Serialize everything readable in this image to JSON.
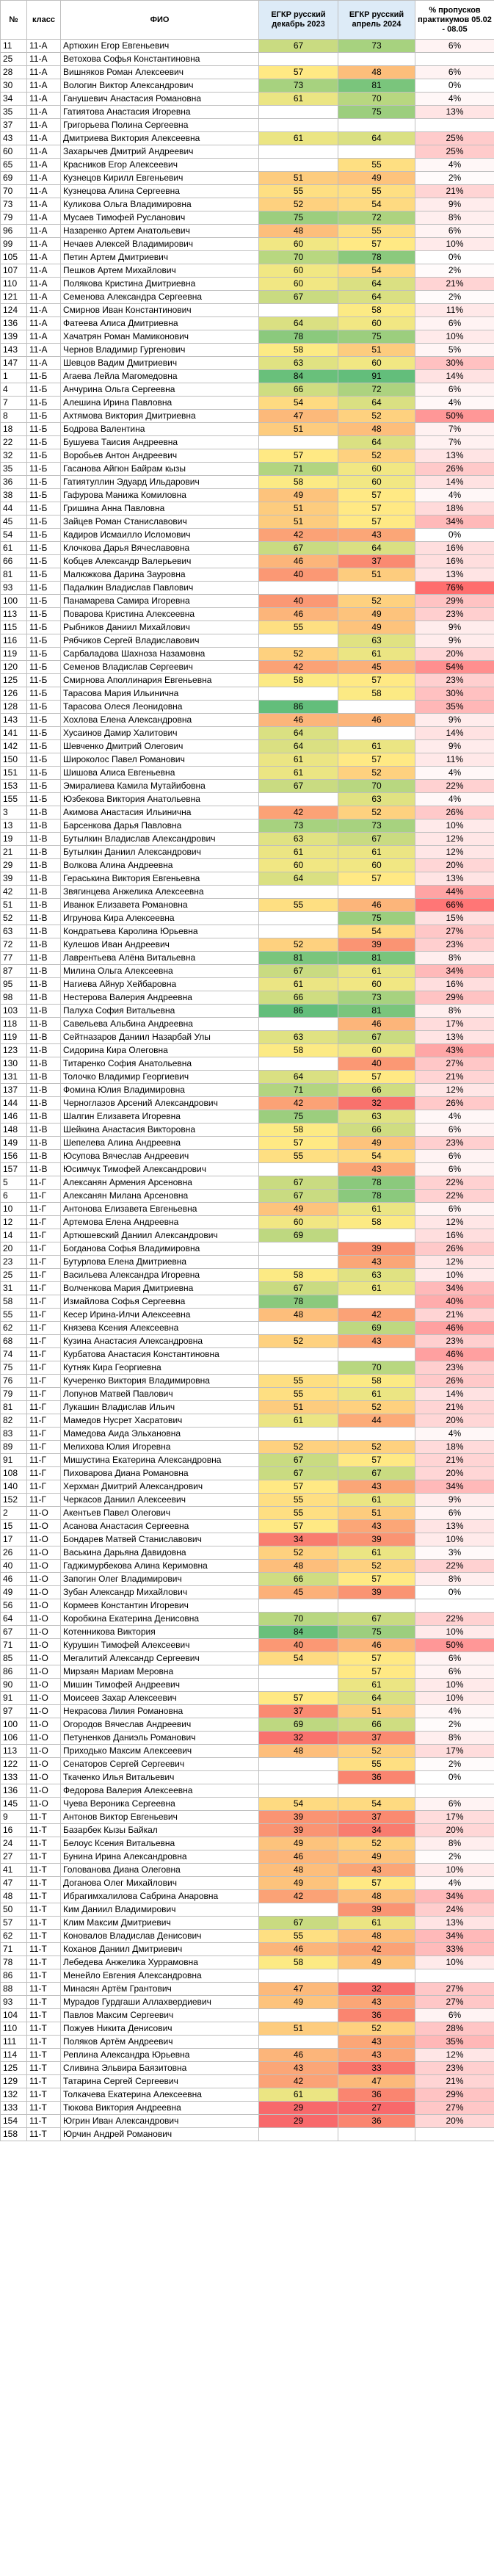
{
  "headers": [
    "№",
    "класс",
    "ФИО",
    "ЕГКР русский декабрь 2023",
    "ЕГКР русский апрель 2024",
    "% пропусков практикумов 05.02 - 08.05"
  ],
  "rows": [
    [
      "11",
      "11-А",
      "Артюхин Егор Евгеньевич",
      "67",
      "73",
      "6%"
    ],
    [
      "25",
      "11-А",
      "Ветохова Софья Константиновна",
      "",
      "",
      ""
    ],
    [
      "28",
      "11-А",
      "Вишняков Роман Алексеевич",
      "57",
      "48",
      "6%"
    ],
    [
      "30",
      "11-А",
      "Вологин Виктор Александрович",
      "73",
      "81",
      "0%"
    ],
    [
      "34",
      "11-А",
      "Ганушевич Анастасия Романовна",
      "61",
      "70",
      "4%"
    ],
    [
      "35",
      "11-А",
      "Гатиятова Анастасия Игоревна",
      "",
      "75",
      "13%"
    ],
    [
      "37",
      "11-А",
      "Григорьева Полина Сергеевна",
      "",
      "",
      ""
    ],
    [
      "43",
      "11-А",
      "Дмитриева Виктория Алексеевна",
      "61",
      "64",
      "25%"
    ],
    [
      "60",
      "11-А",
      "Захарычев Дмитрий Андреевич",
      "",
      "",
      "25%"
    ],
    [
      "65",
      "11-А",
      "Красников Егор Алексеевич",
      "",
      "55",
      "4%"
    ],
    [
      "69",
      "11-А",
      "Кузнецов Кирилл Евгеньевич",
      "51",
      "49",
      "2%"
    ],
    [
      "70",
      "11-А",
      "Кузнецова Алина Сергеевна",
      "55",
      "55",
      "21%"
    ],
    [
      "73",
      "11-А",
      "Куликова Ольга Владимировна",
      "52",
      "54",
      "9%"
    ],
    [
      "79",
      "11-А",
      "Мусаев Тимофей Русланович",
      "75",
      "72",
      "8%"
    ],
    [
      "96",
      "11-А",
      "Назаренко Артем Анатольевич",
      "48",
      "55",
      "6%"
    ],
    [
      "99",
      "11-А",
      "Нечаев Алексей Владимирович",
      "60",
      "57",
      "10%"
    ],
    [
      "105",
      "11-А",
      "Петин Артем Дмитриевич",
      "70",
      "78",
      "0%"
    ],
    [
      "107",
      "11-А",
      "Пешков Артем Михайлович",
      "60",
      "54",
      "2%"
    ],
    [
      "110",
      "11-А",
      "Полякова Кристина Дмитриевна",
      "60",
      "64",
      "21%"
    ],
    [
      "121",
      "11-А",
      "Семенова Александра Сергеевна",
      "67",
      "64",
      "2%"
    ],
    [
      "124",
      "11-А",
      "Смирнов Иван Константинович",
      "",
      "58",
      "11%"
    ],
    [
      "136",
      "11-А",
      "Фатеева Алиса Дмитриевна",
      "64",
      "60",
      "6%"
    ],
    [
      "139",
      "11-А",
      "Хачатрян Роман Мамиконович",
      "78",
      "75",
      "10%"
    ],
    [
      "143",
      "11-А",
      "Чернов Владимир Гургенович",
      "58",
      "51",
      "5%"
    ],
    [
      "147",
      "11-А",
      "Шевцов Вадим Дмитриевич",
      "63",
      "60",
      "30%"
    ],
    [
      "1",
      "11-Б",
      "Агаева Лейла Магомедовна",
      "84",
      "91",
      "14%"
    ],
    [
      "4",
      "11-Б",
      "Анчурина Ольга Сергеевна",
      "66",
      "72",
      "6%"
    ],
    [
      "7",
      "11-Б",
      "Алешина Ирина Павловна",
      "54",
      "64",
      "4%"
    ],
    [
      "8",
      "11-Б",
      "Ахтямова Виктория Дмитриевна",
      "47",
      "52",
      "50%"
    ],
    [
      "18",
      "11-Б",
      "Бодрова Валентина",
      "51",
      "48",
      "7%"
    ],
    [
      "22",
      "11-Б",
      "Бушуева Таисия Андреевна",
      "",
      "64",
      "7%"
    ],
    [
      "32",
      "11-Б",
      "Воробьев Антон Андреевич",
      "57",
      "52",
      "13%"
    ],
    [
      "35",
      "11-Б",
      "Гасанова Айгюн Байрам кызы",
      "71",
      "60",
      "26%"
    ],
    [
      "36",
      "11-Б",
      "Гатиятуллин Эдуард Ильдарович",
      "58",
      "60",
      "14%"
    ],
    [
      "38",
      "11-Б",
      "Гафурова Манижа Комиловна",
      "49",
      "57",
      "4%"
    ],
    [
      "44",
      "11-Б",
      "Гришина Анна Павловна",
      "51",
      "57",
      "18%"
    ],
    [
      "45",
      "11-Б",
      "Зайцев Роман Станиславович",
      "51",
      "57",
      "34%"
    ],
    [
      "54",
      "11-Б",
      "Кадиров Исмаилло Исломович",
      "42",
      "43",
      "0%"
    ],
    [
      "61",
      "11-Б",
      "Клочкова Дарья Вячеславовна",
      "67",
      "64",
      "16%"
    ],
    [
      "66",
      "11-Б",
      "Кобцев Александр Валерьевич",
      "46",
      "37",
      "16%"
    ],
    [
      "81",
      "11-Б",
      "Малюжкова Дарина Зауровна",
      "40",
      "51",
      "13%"
    ],
    [
      "93",
      "11-Б",
      "Падалкин Владислав Павлович",
      "",
      "",
      "76%"
    ],
    [
      "100",
      "11-Б",
      "Панамарева Самира Игоревна",
      "40",
      "52",
      "29%"
    ],
    [
      "113",
      "11-Б",
      "Поварова Кристина Алексеевна",
      "46",
      "49",
      "23%"
    ],
    [
      "115",
      "11-Б",
      "Рыбников Даниил Михайлович",
      "55",
      "49",
      "9%"
    ],
    [
      "116",
      "11-Б",
      "Рябчиков Сергей Владиславович",
      "",
      "63",
      "9%"
    ],
    [
      "119",
      "11-Б",
      "Сарбаладова Шахноза Назамовна",
      "52",
      "61",
      "20%"
    ],
    [
      "120",
      "11-Б",
      "Семенов Владислав Сергеевич",
      "42",
      "45",
      "54%"
    ],
    [
      "125",
      "11-Б",
      "Смирнова Аполлинария Евгеньевна",
      "58",
      "57",
      "23%"
    ],
    [
      "126",
      "11-Б",
      "Тарасова Мария Ильинична",
      "",
      "58",
      "30%"
    ],
    [
      "128",
      "11-Б",
      "Тарасова Олеся Леонидовна",
      "86",
      "",
      "35%"
    ],
    [
      "143",
      "11-Б",
      "Хохлова Елена Александровна",
      "46",
      "46",
      "9%"
    ],
    [
      "141",
      "11-Б",
      "Хусаинов Дамир Халитович",
      "64",
      "",
      "14%"
    ],
    [
      "142",
      "11-Б",
      "Шевченко Дмитрий Олегович",
      "64",
      "61",
      "9%"
    ],
    [
      "150",
      "11-Б",
      "Широколос Павел Романович",
      "61",
      "57",
      "11%"
    ],
    [
      "151",
      "11-Б",
      "Шишова Алиса Евгеньевна",
      "61",
      "52",
      "4%"
    ],
    [
      "153",
      "11-Б",
      "Эмиралиева Камила Мутайибовна",
      "67",
      "70",
      "22%"
    ],
    [
      "155",
      "11-Б",
      "Юзбекова Виктория Анатольевна",
      "",
      "63",
      "4%"
    ],
    [
      "3",
      "11-В",
      "Акимова Анастасия Ильинична",
      "42",
      "52",
      "26%"
    ],
    [
      "13",
      "11-В",
      "Барсенкова Дарья Павловна",
      "73",
      "73",
      "10%"
    ],
    [
      "19",
      "11-В",
      "Бутылкин Владислав Александрович",
      "63",
      "67",
      "12%"
    ],
    [
      "21",
      "11-В",
      "Бутылкин Даниил Александрович",
      "61",
      "61",
      "12%"
    ],
    [
      "29",
      "11-В",
      "Волкова Алина Андреевна",
      "60",
      "60",
      "20%"
    ],
    [
      "39",
      "11-В",
      "Гераськина Виктория Евгеньевна",
      "64",
      "57",
      "13%"
    ],
    [
      "42",
      "11-В",
      "Звягинцева Анжелика Алексеевна",
      "",
      "",
      "44%"
    ],
    [
      "51",
      "11-В",
      "Иванюк Елизавета Романовна",
      "55",
      "46",
      "66%"
    ],
    [
      "52",
      "11-В",
      "Игрунова Кира Алексеевна",
      "",
      "75",
      "15%"
    ],
    [
      "63",
      "11-В",
      "Кондратьева Каролина Юрьевна",
      "",
      "54",
      "27%"
    ],
    [
      "72",
      "11-В",
      "Кулешов Иван Андреевич",
      "52",
      "39",
      "23%"
    ],
    [
      "77",
      "11-В",
      "Лаврентьева Алёна Витальевна",
      "81",
      "81",
      "8%"
    ],
    [
      "87",
      "11-В",
      "Милина Ольга Алексеевна",
      "67",
      "61",
      "34%"
    ],
    [
      "95",
      "11-В",
      "Нагиева Айнур Хейбаровна",
      "61",
      "60",
      "16%"
    ],
    [
      "98",
      "11-В",
      "Нестерова Валерия Андреевна",
      "66",
      "73",
      "29%"
    ],
    [
      "103",
      "11-В",
      "Палуха София Витальевна",
      "86",
      "81",
      "8%"
    ],
    [
      "118",
      "11-В",
      "Савельева Альбина Андреевна",
      "",
      "46",
      "17%"
    ],
    [
      "119",
      "11-В",
      "Сейтназаров Даниил Назарбай Улы",
      "63",
      "67",
      "13%"
    ],
    [
      "123",
      "11-В",
      "Сидорина Кира Олеговна",
      "58",
      "60",
      "43%"
    ],
    [
      "130",
      "11-В",
      "Титаренко София Анатольевна",
      "",
      "40",
      "27%"
    ],
    [
      "131",
      "11-В",
      "Толочко Владимир Георгиевич",
      "64",
      "57",
      "21%"
    ],
    [
      "137",
      "11-В",
      "Фомина Юлия Владимировна",
      "71",
      "66",
      "12%"
    ],
    [
      "144",
      "11-В",
      "Черноглазов Арсений Александрович",
      "42",
      "32",
      "26%"
    ],
    [
      "146",
      "11-В",
      "Шалгин Елизавета Игоревна",
      "75",
      "63",
      "4%"
    ],
    [
      "148",
      "11-В",
      "Шейкина Анастасия Викторовна",
      "58",
      "66",
      "6%"
    ],
    [
      "149",
      "11-В",
      "Шепелева Алина Андреевна",
      "57",
      "49",
      "23%"
    ],
    [
      "156",
      "11-В",
      "Юсупова Вячеслав Андреевич",
      "55",
      "54",
      "6%"
    ],
    [
      "157",
      "11-В",
      "Юсимчук Тимофей Александрович",
      "",
      "43",
      "6%"
    ],
    [
      "5",
      "11-Г",
      "Алексанян Армения Арсеновна",
      "67",
      "78",
      "22%"
    ],
    [
      "6",
      "11-Г",
      "Алексанян Милана Арсеновна",
      "67",
      "78",
      "22%"
    ],
    [
      "10",
      "11-Г",
      "Антонова Елизавета Евгеньевна",
      "49",
      "61",
      "6%"
    ],
    [
      "12",
      "11-Г",
      "Артемова Елена Андреевна",
      "60",
      "58",
      "12%"
    ],
    [
      "14",
      "11-Г",
      "Артюшевский Даниил Александрович",
      "69",
      "",
      "16%"
    ],
    [
      "20",
      "11-Г",
      "Богданова Софья Владимировна",
      "",
      "39",
      "26%"
    ],
    [
      "23",
      "11-Г",
      "Бутурлова Елена Дмитриевна",
      "",
      "43",
      "12%"
    ],
    [
      "25",
      "11-Г",
      "Васильева Александра Игоревна",
      "58",
      "63",
      "10%"
    ],
    [
      "31",
      "11-Г",
      "Волченкова Мария Дмитриевна",
      "67",
      "61",
      "34%"
    ],
    [
      "58",
      "11-Г",
      "Измайлова Софья Сергеевна",
      "78",
      "",
      "40%"
    ],
    [
      "55",
      "11-Г",
      "Кесер Ирина-Илчи Алексеевна",
      "48",
      "42",
      "21%"
    ],
    [
      "62",
      "11-Г",
      "Князева Ксения Алексеевна",
      "",
      "69",
      "46%"
    ],
    [
      "68",
      "11-Г",
      "Кузина Анастасия Александровна",
      "52",
      "43",
      "23%"
    ],
    [
      "74",
      "11-Г",
      "Курбатова Анастасия Константиновна",
      "",
      "",
      "46%"
    ],
    [
      "75",
      "11-Г",
      "Кутняк Кира Георгиевна",
      "",
      "70",
      "23%"
    ],
    [
      "76",
      "11-Г",
      "Кучеренко Виктория Владимировна",
      "55",
      "58",
      "26%"
    ],
    [
      "79",
      "11-Г",
      "Лопунов Матвей Павлович",
      "55",
      "61",
      "14%"
    ],
    [
      "81",
      "11-Г",
      "Лукашин Владислав Ильич",
      "51",
      "52",
      "21%"
    ],
    [
      "82",
      "11-Г",
      "Мамедов Нусрет Хасратович",
      "61",
      "44",
      "20%"
    ],
    [
      "83",
      "11-Г",
      "Мамедова Аида Эльхановна",
      "",
      "",
      "4%"
    ],
    [
      "89",
      "11-Г",
      "Мелихова Юлия Игоревна",
      "52",
      "52",
      "18%"
    ],
    [
      "91",
      "11-Г",
      "Мишустина Екатерина Александровна",
      "67",
      "57",
      "21%"
    ],
    [
      "108",
      "11-Г",
      "Пиховарова Диана Романовна",
      "67",
      "67",
      "20%"
    ],
    [
      "140",
      "11-Г",
      "Херхман Дмитрий Александрович",
      "57",
      "43",
      "34%"
    ],
    [
      "152",
      "11-Г",
      "Черкасов Даниил Алексеевич",
      "55",
      "61",
      "9%"
    ],
    [
      "2",
      "11-О",
      "Акентьев Павел Олегович",
      "55",
      "51",
      "6%"
    ],
    [
      "15",
      "11-О",
      "Асанова Анастасия Сергеевна",
      "57",
      "43",
      "13%"
    ],
    [
      "17",
      "11-О",
      "Бондарев Матвей Станиславович",
      "34",
      "39",
      "10%"
    ],
    [
      "26",
      "11-О",
      "Васькина Дарьяна Давидовна",
      "52",
      "61",
      "3%"
    ],
    [
      "40",
      "11-О",
      "Гаджимурбекова Алина Керимовна",
      "48",
      "52",
      "22%"
    ],
    [
      "46",
      "11-О",
      "Запогин Олег Владимирович",
      "66",
      "57",
      "8%"
    ],
    [
      "49",
      "11-О",
      "Зубан Александр Михайлович",
      "45",
      "39",
      "0%"
    ],
    [
      "56",
      "11-О",
      "Кормеев Константин Игоревич",
      "",
      "",
      ""
    ],
    [
      "64",
      "11-О",
      "Коробкина Екатерина Денисовна",
      "70",
      "67",
      "22%"
    ],
    [
      "67",
      "11-О",
      "Котенникова Виктория",
      "84",
      "75",
      "10%"
    ],
    [
      "71",
      "11-О",
      "Курушин Тимофей Алексеевич",
      "40",
      "46",
      "50%"
    ],
    [
      "85",
      "11-О",
      "Мегалитий Александр Сергеевич",
      "54",
      "57",
      "6%"
    ],
    [
      "86",
      "11-О",
      "Мирзаян Мариам Меровна",
      "",
      "57",
      "6%"
    ],
    [
      "90",
      "11-О",
      "Мишин Тимофей Андреевич",
      "",
      "61",
      "10%"
    ],
    [
      "91",
      "11-О",
      "Моисеев Захар Алексеевич",
      "57",
      "64",
      "10%"
    ],
    [
      "97",
      "11-О",
      "Некрасова Лилия Романовна",
      "37",
      "51",
      "4%"
    ],
    [
      "100",
      "11-О",
      "Огородов Вячеслав Андреевич",
      "69",
      "66",
      "2%"
    ],
    [
      "106",
      "11-О",
      "Петуненков Даниэль Романович",
      "32",
      "37",
      "8%"
    ],
    [
      "113",
      "11-О",
      "Приходько Максим Алексеевич",
      "48",
      "52",
      "17%"
    ],
    [
      "122",
      "11-О",
      "Сенаторов Сергей Сергеевич",
      "",
      "55",
      "2%"
    ],
    [
      "133",
      "11-О",
      "Ткаченко Илья Витальевич",
      "",
      "36",
      "0%"
    ],
    [
      "136",
      "11-О",
      "Федорова Валерия Алексеевна",
      "",
      "",
      ""
    ],
    [
      "145",
      "11-О",
      "Чуева Вероника Сергеевна",
      "54",
      "54",
      "6%"
    ],
    [
      "9",
      "11-Т",
      "Антонов Виктор Евгеньевич",
      "39",
      "37",
      "17%"
    ],
    [
      "16",
      "11-Т",
      "Базарбек Кызы Байкал",
      "39",
      "34",
      "20%"
    ],
    [
      "24",
      "11-Т",
      "Белоус Ксения Витальевна",
      "49",
      "52",
      "8%"
    ],
    [
      "27",
      "11-Т",
      "Бунина Ирина Александровна",
      "46",
      "49",
      "2%"
    ],
    [
      "41",
      "11-Т",
      "Голованова Диана Олеговна",
      "48",
      "43",
      "10%"
    ],
    [
      "47",
      "11-Т",
      "Доганова Олег Михайлович",
      "49",
      "57",
      "4%"
    ],
    [
      "48",
      "11-Т",
      "Ибрагимхалилова Сабрина Анаровна",
      "42",
      "48",
      "34%"
    ],
    [
      "50",
      "11-Т",
      "Ким Даниил Владимирович",
      "",
      "39",
      "24%"
    ],
    [
      "57",
      "11-Т",
      "Клим Максим Дмитриевич",
      "67",
      "61",
      "13%"
    ],
    [
      "62",
      "11-Т",
      "Коновалов Владислав Денисович",
      "55",
      "48",
      "34%"
    ],
    [
      "71",
      "11-Т",
      "Коханов Даниил Дмитриевич",
      "46",
      "42",
      "33%"
    ],
    [
      "78",
      "11-Т",
      "Лебедева Анжелика Хуррамовна",
      "58",
      "49",
      "10%"
    ],
    [
      "86",
      "11-Т",
      "Менейло Евгения Александровна",
      "",
      "",
      ""
    ],
    [
      "88",
      "11-Т",
      "Минасян Артём Грантович",
      "47",
      "32",
      "27%"
    ],
    [
      "93",
      "11-Т",
      "Мурадов Гурдгаши Аллахвердиевич",
      "49",
      "43",
      "27%"
    ],
    [
      "104",
      "11-Т",
      "Павлов Максим Сергеевич",
      "",
      "36",
      "6%"
    ],
    [
      "110",
      "11-Т",
      "Пожуев Никита Денисович",
      "51",
      "52",
      "28%"
    ],
    [
      "111",
      "11-Т",
      "Поляков Артём Андреевич",
      "",
      "43",
      "35%"
    ],
    [
      "114",
      "11-Т",
      "Реплина Александра Юрьевна",
      "46",
      "43",
      "12%"
    ],
    [
      "125",
      "11-Т",
      "Сливина Эльвира Баязитовна",
      "43",
      "33",
      "23%"
    ],
    [
      "129",
      "11-Т",
      "Татарина Сергей Сергеевич",
      "42",
      "47",
      "21%"
    ],
    [
      "132",
      "11-Т",
      "Толкачева Екатерина Алексеевна",
      "61",
      "36",
      "29%"
    ],
    [
      "133",
      "11-Т",
      "Тюкова Виктория Андреевна",
      "29",
      "27",
      "27%"
    ],
    [
      "154",
      "11-Т",
      "Югрин Иван Александрович",
      "29",
      "36",
      "20%"
    ],
    [
      "158",
      "11-Т",
      "Юрчин Андрей Романович",
      "",
      "",
      ""
    ]
  ]
}
